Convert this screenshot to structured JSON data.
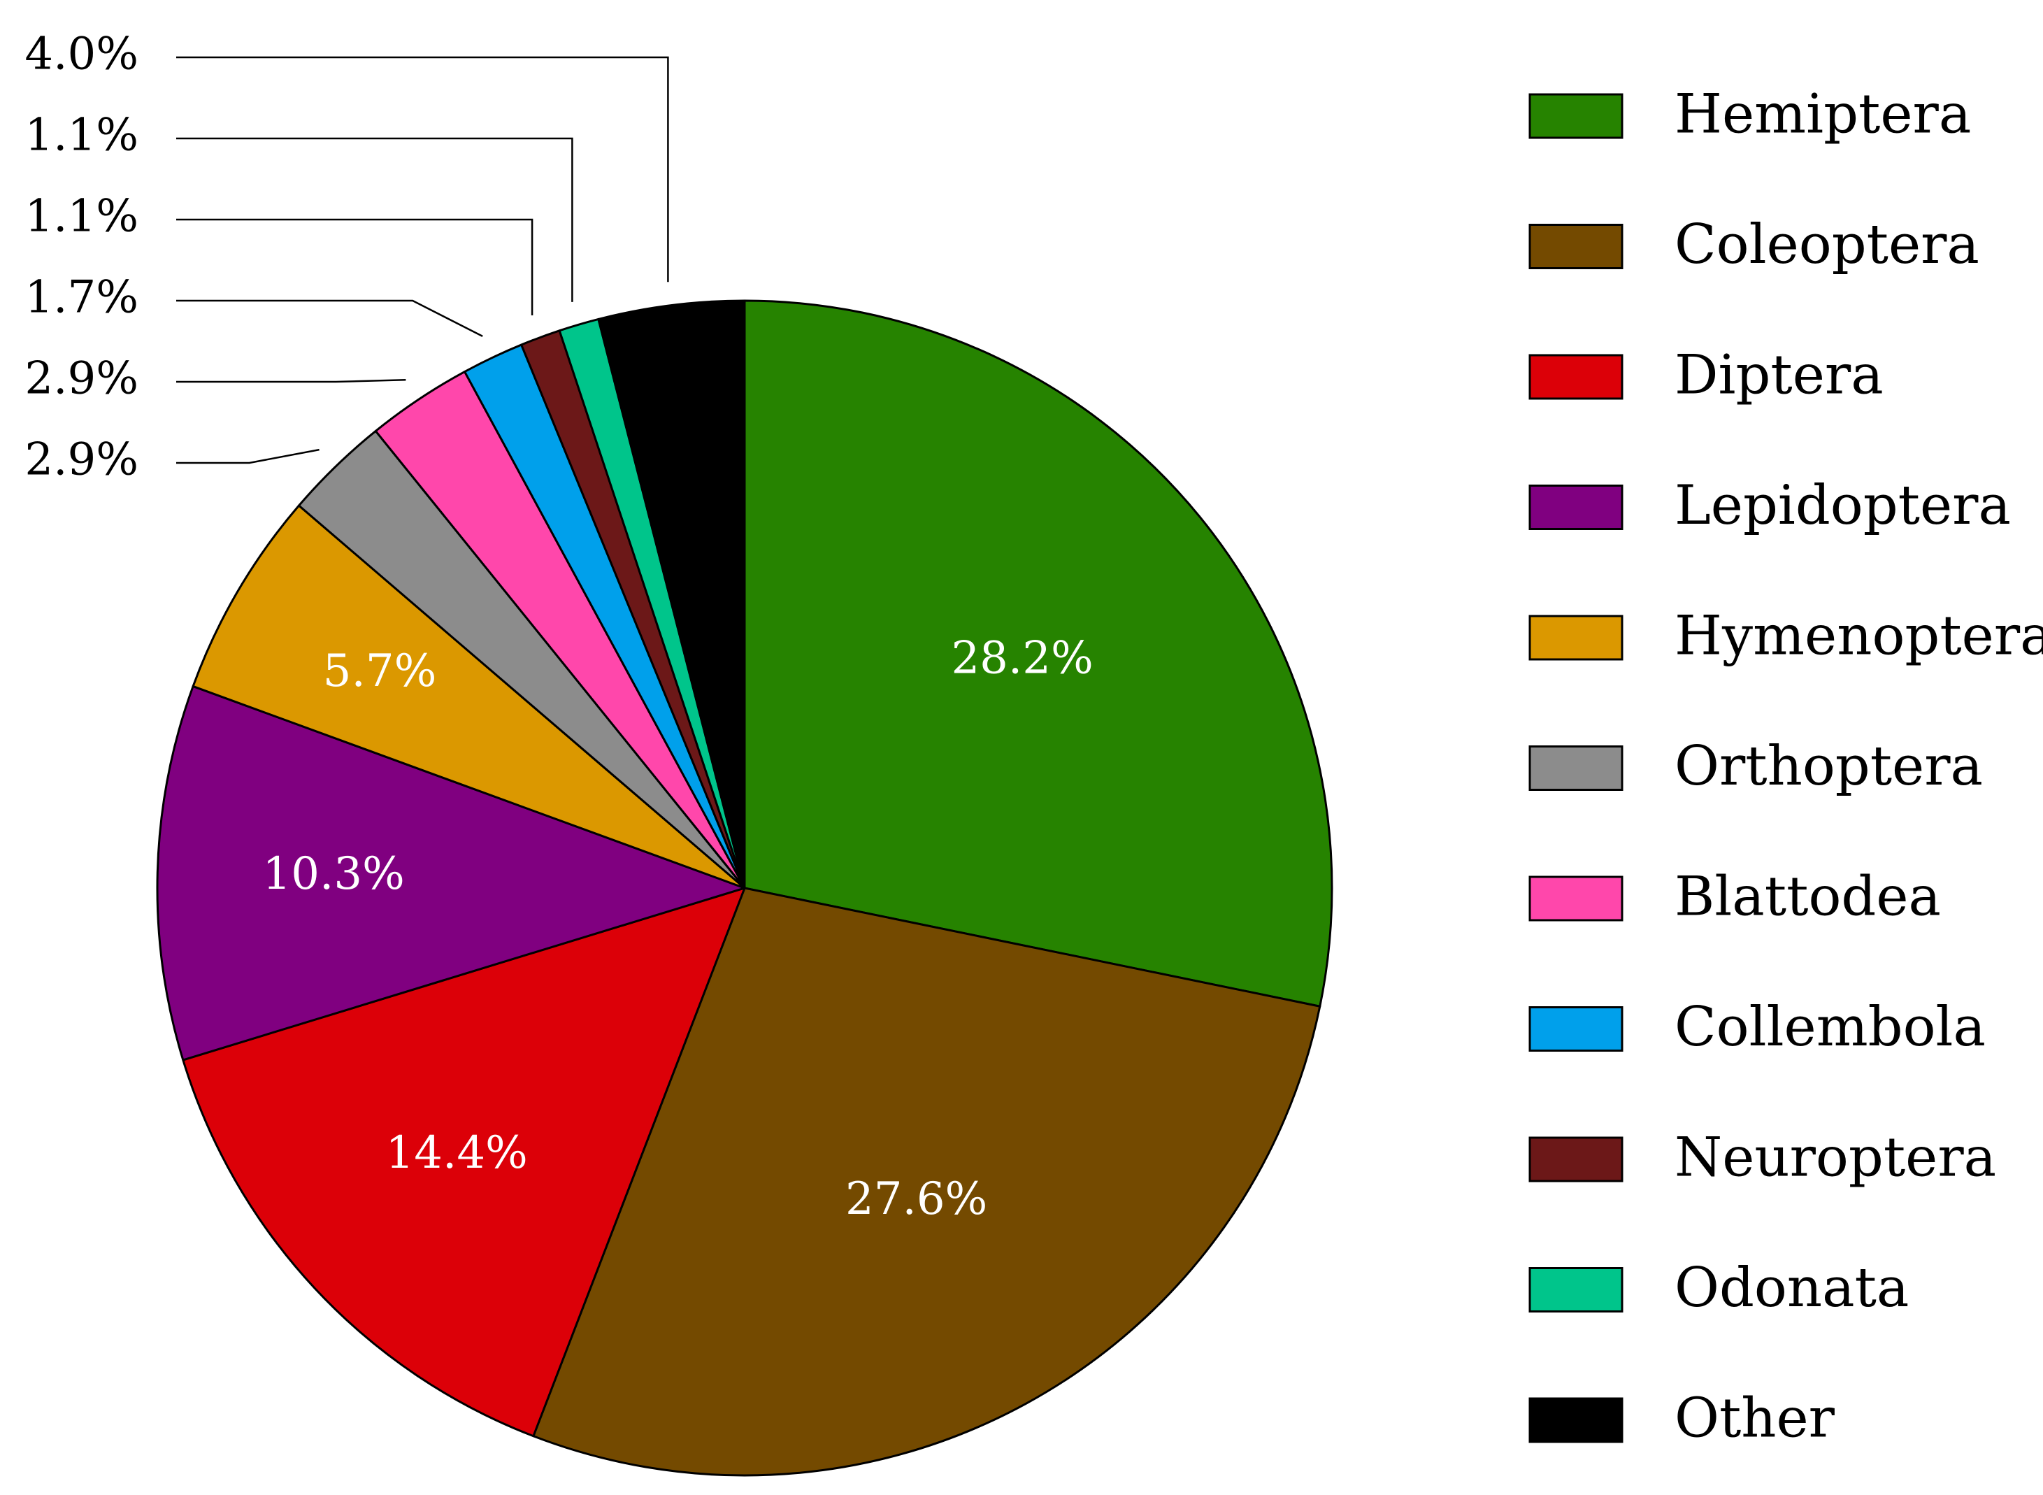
{
  "chart_data": {
    "type": "pie",
    "title": "",
    "start_angle_deg": 0,
    "direction": "clockwise",
    "legend_position": "right",
    "slices": [
      {
        "label": "Hemiptera",
        "value": 28.2,
        "display": "28.2%",
        "color": "#268300",
        "label_placement": "inside"
      },
      {
        "label": "Coleoptera",
        "value": 27.6,
        "display": "27.6%",
        "color": "#744A00",
        "label_placement": "inside"
      },
      {
        "label": "Diptera",
        "value": 14.4,
        "display": "14.4%",
        "color": "#DC0008",
        "label_placement": "inside"
      },
      {
        "label": "Lepidoptera",
        "value": 10.3,
        "display": "10.3%",
        "color": "#800080",
        "label_placement": "inside"
      },
      {
        "label": "Hymenoptera",
        "value": 5.7,
        "display": "5.7%",
        "color": "#DB9800",
        "label_placement": "inside"
      },
      {
        "label": "Orthoptera",
        "value": 2.9,
        "display": "2.9%",
        "color": "#8C8C8C",
        "label_placement": "outside"
      },
      {
        "label": "Blattodea",
        "value": 2.9,
        "display": "2.9%",
        "color": "#FF47AB",
        "label_placement": "outside"
      },
      {
        "label": "Collembola",
        "value": 1.7,
        "display": "1.7%",
        "color": "#00A0EB",
        "label_placement": "outside"
      },
      {
        "label": "Neuroptera",
        "value": 1.1,
        "display": "1.1%",
        "color": "#6C1818",
        "label_placement": "outside"
      },
      {
        "label": "Odonata",
        "value": 1.1,
        "display": "1.1%",
        "color": "#00C58B",
        "label_placement": "outside"
      },
      {
        "label": "Other",
        "value": 4.0,
        "display": "4.0%",
        "color": "#000000",
        "label_placement": "outside"
      }
    ]
  }
}
